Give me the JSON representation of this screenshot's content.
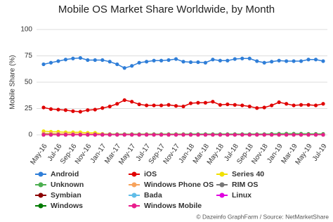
{
  "chart_data": {
    "type": "line",
    "title": "Mobile OS Market Share Worldwide, by Month",
    "y_label": "Mobile Share (%)",
    "source": "© Dazeinfo GraphFarm / Source: NetMarketShare",
    "categories": [
      "May-16",
      null,
      "Jul-16",
      null,
      "Sep-16",
      null,
      "Nov-16",
      null,
      "Jan-17",
      null,
      "Mar-17",
      null,
      "May-17",
      null,
      "Jul-17",
      null,
      "Sep-17",
      null,
      "Nov-17",
      null,
      "Jan-18",
      null,
      "Mar-18",
      null,
      "May-18",
      null,
      "Jul-18",
      null,
      "Sep-18",
      null,
      "Nov-18",
      null,
      "Jan-19",
      null,
      "Mar-19",
      null,
      "May-19",
      null,
      "Jul-19"
    ],
    "ylim": [
      0,
      100
    ],
    "yticks": [
      0,
      25,
      50,
      75,
      100
    ],
    "grid": true,
    "series": [
      {
        "name": "Android",
        "color": "#2f7ed8",
        "values": [
          67,
          68.5,
          70,
          71.5,
          72.5,
          73,
          71,
          71,
          71,
          69.5,
          67,
          63.5,
          65.5,
          68.5,
          69.5,
          70.5,
          70.5,
          71,
          72,
          69.5,
          69,
          69,
          68.5,
          71.5,
          70.5,
          70.5,
          72,
          72.5,
          72.5,
          70,
          68.5,
          69.5,
          70.5,
          70,
          70,
          70,
          71.5,
          71.5,
          70
        ]
      },
      {
        "name": "iOS",
        "color": "#e00000",
        "values": [
          26,
          24.5,
          24,
          23.5,
          22.5,
          22,
          23.5,
          24,
          25.5,
          27,
          29.5,
          33,
          31.5,
          29,
          28,
          28,
          28,
          28.5,
          27.5,
          27,
          30,
          30.5,
          30.5,
          31.5,
          28.5,
          29,
          28.5,
          28,
          27,
          25.5,
          26,
          28,
          31,
          29.5,
          28,
          28.5,
          28.5,
          28,
          29.5
        ]
      },
      {
        "name": "Series 40",
        "color": "#f0e000",
        "values": [
          3.5,
          3,
          3,
          2.5,
          2.5,
          2.5,
          2,
          2,
          1,
          0.8,
          0.7,
          0.6,
          0.6,
          0.5,
          0.5,
          0.5,
          0.5,
          0.5,
          0.4,
          0.4,
          0.4,
          0.4,
          0.4,
          0.4,
          0.3,
          0.3,
          0.3,
          0.3,
          0.3,
          0.3,
          0.3,
          0.3,
          0.3,
          0.3,
          0.3,
          0.3,
          0.3,
          0.3,
          0.3
        ]
      },
      {
        "name": "Unknown",
        "color": "#4caf50",
        "values": [
          0.8,
          0.8,
          0.8,
          0.8,
          0.8,
          0.8,
          0.8,
          0.8,
          0.8,
          0.8,
          0.8,
          0.8,
          0.8,
          0.8,
          0.8,
          0.8,
          0.8,
          0.8,
          0.8,
          0.8,
          0.8,
          0.8,
          0.8,
          0.8,
          0.8,
          0.8,
          0.8,
          0.8,
          0.8,
          0.8,
          0.8,
          1,
          1.2,
          1.3,
          1.2,
          1.2,
          1,
          1,
          1
        ]
      },
      {
        "name": "Windows Phone OS",
        "color": "#f7a35c",
        "values": [
          1.5,
          1.4,
          1.3,
          1.2,
          1.1,
          1,
          0.9,
          0.8,
          0.7,
          0.6,
          0.5,
          0.5,
          0.5,
          0.5,
          0.5,
          0.4,
          0.4,
          0.4,
          0.4,
          0.4,
          0.3,
          0.3,
          0.3,
          0.3,
          0.3,
          0.3,
          0.3,
          0.3,
          0.3,
          0.3,
          0.3,
          0.3,
          0.3,
          0.3,
          0.3,
          0.3,
          0.3,
          0.3,
          0.3
        ]
      },
      {
        "name": "RIM OS",
        "color": "#777777",
        "values": [
          0.2,
          0.2,
          0.2,
          0.2,
          0.2,
          0.2,
          0.2,
          0.2,
          0.2,
          0.2,
          0.2,
          0.2,
          0.2,
          0.2,
          0.2,
          0.2,
          0.2,
          0.2,
          0.2,
          0.2,
          0.2,
          0.2,
          0.2,
          0.2,
          0.2,
          0.2,
          0.2,
          0.2,
          0.2,
          0.2,
          0.2,
          0.2,
          0.2,
          0.2,
          0.2,
          0.2,
          0.2,
          0.2,
          0.2
        ]
      },
      {
        "name": "Symbian",
        "color": "#8b0000",
        "values": [
          0.2,
          0.2,
          0.2,
          0.2,
          0.2,
          0.2,
          0.2,
          0.2,
          0.1,
          0.1,
          0.1,
          0.1,
          0.1,
          0.1,
          0.1,
          0.1,
          0.1,
          0.1,
          0.1,
          0.1,
          0.1,
          0.1,
          0.1,
          0.1,
          0.1,
          0.1,
          0.1,
          0.1,
          0.1,
          0.1,
          0.1,
          0.1,
          0.1,
          0.1,
          0.1,
          0.1,
          0.1,
          0.1,
          0.1
        ]
      },
      {
        "name": "Bada",
        "color": "#60bde8",
        "values": [
          0.1,
          0.1,
          0.1,
          0.1,
          0.1,
          0.1,
          0.1,
          0.1,
          0.1,
          0.1,
          0.1,
          0.1,
          0.1,
          0.1,
          0.1,
          0.1,
          0.1,
          0.1,
          0.1,
          0.1,
          0.1,
          0.1,
          0.1,
          0.1,
          0.1,
          0.1,
          0.1,
          0.1,
          0.1,
          0.1,
          0.1,
          0.1,
          0.1,
          0.1,
          0.1,
          0.1,
          0.1,
          0.1,
          0.1
        ]
      },
      {
        "name": "Linux",
        "color": "#e000e0",
        "values": [
          0.1,
          0.1,
          0.1,
          0.1,
          0.1,
          0.1,
          0.1,
          0.1,
          0.1,
          0.1,
          0.1,
          0.1,
          0.1,
          0.1,
          0.1,
          0.1,
          0.1,
          0.1,
          0.1,
          0.1,
          0.1,
          0.1,
          0.1,
          0.1,
          0.1,
          0.1,
          0.1,
          0.1,
          0.1,
          0.1,
          0.1,
          0.1,
          0.1,
          0.1,
          0.1,
          0.1,
          0.1,
          0.1,
          0.1
        ]
      },
      {
        "name": "Windows",
        "color": "#007a00",
        "values": [
          0.1,
          0.1,
          0.1,
          0.1,
          0.1,
          0.1,
          0.1,
          0.1,
          0.1,
          0.1,
          0.1,
          0.1,
          0.1,
          0.1,
          0.1,
          0.1,
          0.1,
          0.1,
          0.1,
          0.1,
          0.1,
          0.1,
          0.1,
          0.1,
          0.1,
          0.1,
          0.1,
          0.1,
          0.1,
          0.1,
          0.1,
          0.1,
          0.1,
          0.1,
          0.1,
          0.1,
          0.1,
          0.1,
          0.1
        ]
      },
      {
        "name": "Windows Mobile",
        "color": "#e91e8c",
        "values": [
          0.1,
          0.1,
          0.1,
          0.1,
          0.1,
          0.1,
          0.1,
          0.1,
          0.1,
          0.1,
          0.1,
          0.1,
          0.1,
          0.1,
          0.1,
          0.1,
          0.1,
          0.1,
          0.1,
          0.1,
          0.1,
          0.1,
          0.1,
          0.1,
          0.1,
          0.1,
          0.1,
          0.1,
          0.1,
          0.1,
          0.1,
          0.1,
          0.1,
          0.1,
          0.1,
          0.1,
          0.1,
          0.1,
          0.1
        ]
      }
    ]
  }
}
